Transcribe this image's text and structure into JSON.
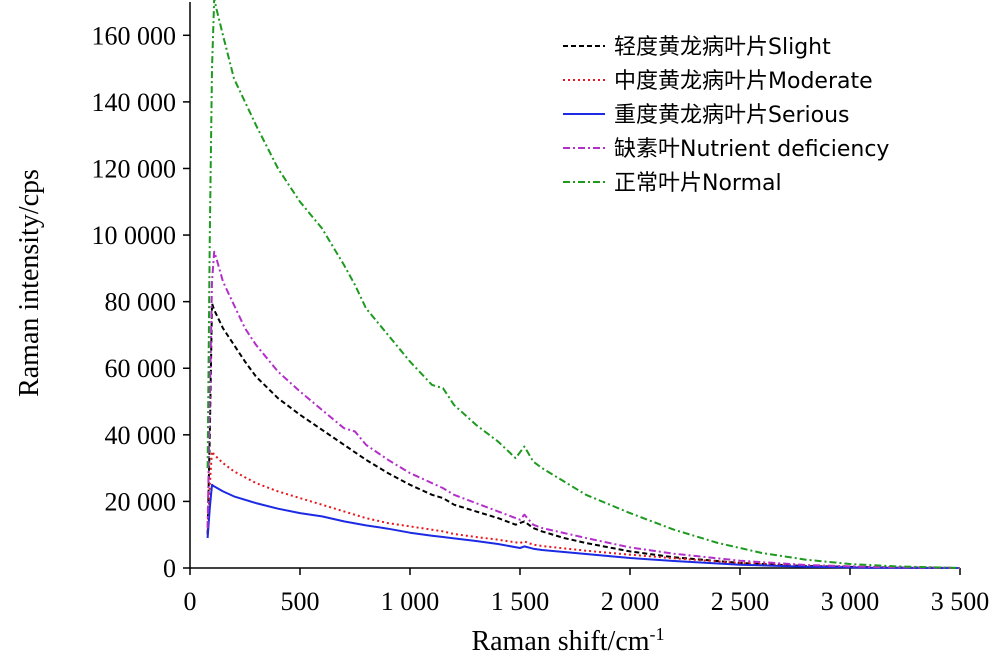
{
  "chart_data": {
    "type": "line",
    "title": "",
    "xlabel": "Raman shift/cm",
    "xlabel_sup": "-1",
    "ylabel": "Raman intensity/cps",
    "xlim": [
      0,
      3500
    ],
    "ylim": [
      0,
      170000
    ],
    "x_ticks": [
      0,
      500,
      1000,
      1500,
      2000,
      2500,
      3000,
      3500
    ],
    "x_tick_labels": [
      "0",
      "500",
      "1 000",
      "1 500",
      "2 000",
      "2 500",
      "3 000",
      "3 500"
    ],
    "y_ticks": [
      0,
      20000,
      40000,
      60000,
      80000,
      100000,
      120000,
      140000,
      160000
    ],
    "y_tick_labels": [
      "0",
      "20 000",
      "40 000",
      "60 000",
      "80 000",
      "10 0000",
      "120 000",
      "140 000",
      "160 000"
    ],
    "grid": false,
    "legend_position": "top-right",
    "series": [
      {
        "name": "轻度黄龙病叶片Slight",
        "color": "#000000",
        "dash": "dashed",
        "points": [
          [
            80,
            10000
          ],
          [
            90,
            40000
          ],
          [
            100,
            79500
          ],
          [
            110,
            77500
          ],
          [
            150,
            72000
          ],
          [
            200,
            67000
          ],
          [
            250,
            62000
          ],
          [
            300,
            57500
          ],
          [
            400,
            51000
          ],
          [
            500,
            46000
          ],
          [
            600,
            41500
          ],
          [
            700,
            37000
          ],
          [
            800,
            32500
          ],
          [
            900,
            28500
          ],
          [
            1000,
            25000
          ],
          [
            1100,
            22000
          ],
          [
            1150,
            21000
          ],
          [
            1200,
            19000
          ],
          [
            1300,
            17000
          ],
          [
            1400,
            15000
          ],
          [
            1480,
            13000
          ],
          [
            1520,
            14000
          ],
          [
            1560,
            12000
          ],
          [
            1600,
            11000
          ],
          [
            1700,
            9000
          ],
          [
            1800,
            7500
          ],
          [
            2000,
            5000
          ],
          [
            2200,
            3200
          ],
          [
            2500,
            1500
          ],
          [
            2800,
            600
          ],
          [
            3100,
            200
          ],
          [
            3500,
            0
          ]
        ]
      },
      {
        "name": "中度黄龙病叶片Moderate",
        "color": "#e8151b",
        "dash": "dotted",
        "points": [
          [
            80,
            10000
          ],
          [
            90,
            25000
          ],
          [
            100,
            35000
          ],
          [
            110,
            34000
          ],
          [
            150,
            31500
          ],
          [
            200,
            29000
          ],
          [
            300,
            25500
          ],
          [
            400,
            23000
          ],
          [
            500,
            21000
          ],
          [
            600,
            19000
          ],
          [
            700,
            17000
          ],
          [
            800,
            15000
          ],
          [
            900,
            13500
          ],
          [
            1000,
            12500
          ],
          [
            1100,
            11500
          ],
          [
            1150,
            11000
          ],
          [
            1200,
            10200
          ],
          [
            1300,
            9300
          ],
          [
            1400,
            8500
          ],
          [
            1500,
            7500
          ],
          [
            1520,
            8000
          ],
          [
            1560,
            7000
          ],
          [
            1600,
            6600
          ],
          [
            1800,
            5200
          ],
          [
            2000,
            4000
          ],
          [
            2200,
            2900
          ],
          [
            2500,
            1500
          ],
          [
            2800,
            600
          ],
          [
            3100,
            200
          ],
          [
            3500,
            0
          ]
        ]
      },
      {
        "name": "重度黄龙病叶片Serious",
        "color": "#1c2be3",
        "dash": "solid",
        "points": [
          [
            80,
            9000
          ],
          [
            90,
            18000
          ],
          [
            100,
            25000
          ],
          [
            110,
            24500
          ],
          [
            150,
            23000
          ],
          [
            200,
            21500
          ],
          [
            300,
            19500
          ],
          [
            400,
            17800
          ],
          [
            500,
            16500
          ],
          [
            600,
            15500
          ],
          [
            700,
            14000
          ],
          [
            800,
            12800
          ],
          [
            900,
            11800
          ],
          [
            1000,
            10600
          ],
          [
            1100,
            9700
          ],
          [
            1150,
            9300
          ],
          [
            1200,
            8900
          ],
          [
            1300,
            8100
          ],
          [
            1400,
            7200
          ],
          [
            1500,
            6000
          ],
          [
            1520,
            6500
          ],
          [
            1560,
            5800
          ],
          [
            1600,
            5400
          ],
          [
            1800,
            4200
          ],
          [
            2000,
            3000
          ],
          [
            2200,
            2100
          ],
          [
            2500,
            1000
          ],
          [
            2800,
            400
          ],
          [
            3100,
            100
          ],
          [
            3500,
            0
          ]
        ]
      },
      {
        "name": "缺素叶Nutrient deficiency",
        "color": "#b32fc9",
        "dash": "dashdot",
        "points": [
          [
            80,
            12000
          ],
          [
            90,
            50000
          ],
          [
            100,
            86000
          ],
          [
            110,
            95000
          ],
          [
            120,
            93000
          ],
          [
            150,
            86000
          ],
          [
            200,
            79000
          ],
          [
            250,
            72000
          ],
          [
            300,
            67000
          ],
          [
            400,
            59000
          ],
          [
            500,
            53000
          ],
          [
            600,
            47500
          ],
          [
            700,
            42000
          ],
          [
            750,
            41000
          ],
          [
            800,
            37000
          ],
          [
            900,
            32500
          ],
          [
            1000,
            28500
          ],
          [
            1100,
            25500
          ],
          [
            1150,
            24000
          ],
          [
            1200,
            22000
          ],
          [
            1300,
            19500
          ],
          [
            1400,
            17000
          ],
          [
            1500,
            14500
          ],
          [
            1520,
            16000
          ],
          [
            1560,
            13000
          ],
          [
            1600,
            12000
          ],
          [
            1800,
            9000
          ],
          [
            2000,
            6200
          ],
          [
            2200,
            4300
          ],
          [
            2500,
            2200
          ],
          [
            2800,
            900
          ],
          [
            3100,
            300
          ],
          [
            3500,
            0
          ]
        ]
      },
      {
        "name": "正常叶片Normal",
        "color": "#1d9a1f",
        "dash": "dashdot",
        "points": [
          [
            80,
            30000
          ],
          [
            90,
            100000
          ],
          [
            100,
            150000
          ],
          [
            110,
            171000
          ],
          [
            120,
            168000
          ],
          [
            150,
            160000
          ],
          [
            200,
            147000
          ],
          [
            300,
            133000
          ],
          [
            400,
            120000
          ],
          [
            500,
            110000
          ],
          [
            600,
            102000
          ],
          [
            700,
            91000
          ],
          [
            750,
            85000
          ],
          [
            800,
            78000
          ],
          [
            900,
            70000
          ],
          [
            1000,
            62000
          ],
          [
            1100,
            55000
          ],
          [
            1150,
            54000
          ],
          [
            1200,
            49000
          ],
          [
            1300,
            43000
          ],
          [
            1400,
            38000
          ],
          [
            1480,
            33000
          ],
          [
            1520,
            36500
          ],
          [
            1560,
            32000
          ],
          [
            1600,
            30000
          ],
          [
            1800,
            22000
          ],
          [
            2000,
            16500
          ],
          [
            2200,
            11500
          ],
          [
            2400,
            7500
          ],
          [
            2600,
            4500
          ],
          [
            2800,
            2500
          ],
          [
            3000,
            1200
          ],
          [
            3200,
            500
          ],
          [
            3500,
            0
          ]
        ]
      }
    ]
  }
}
